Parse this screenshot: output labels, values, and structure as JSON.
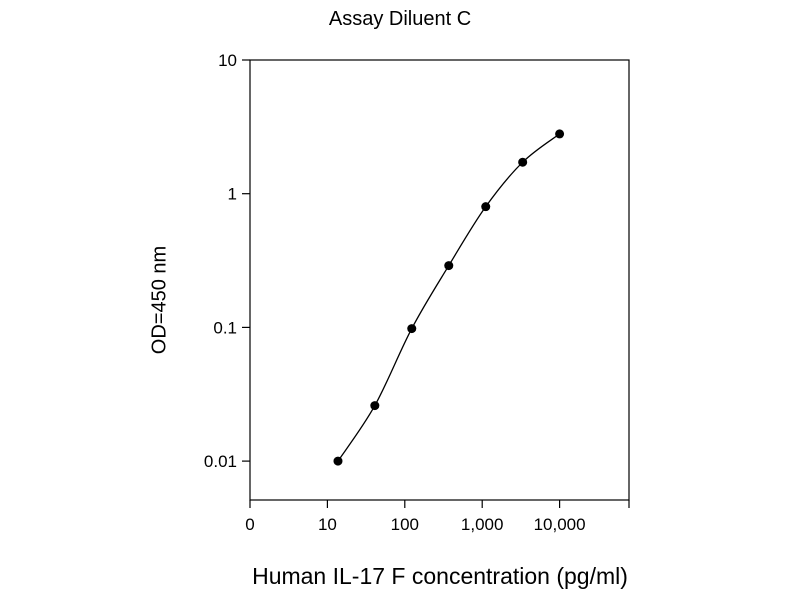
{
  "chart_data": {
    "type": "line",
    "title": "Assay Diluent C",
    "xlabel": "Human IL-17 F concentration (pg/ml)",
    "ylabel": "OD=450 nm",
    "x_scale": "log",
    "y_scale": "log",
    "xlim": [
      1,
      100000
    ],
    "ylim": [
      0.003,
      10
    ],
    "x_ticks": [
      {
        "value": 1,
        "label": "0"
      },
      {
        "value": 10,
        "label": "10"
      },
      {
        "value": 100,
        "label": "100"
      },
      {
        "value": 1000,
        "label": "1,000"
      },
      {
        "value": 10000,
        "label": "10,000"
      }
    ],
    "y_ticks": [
      {
        "value": 0.01,
        "label": "0.01"
      },
      {
        "value": 0.1,
        "label": "0.1"
      },
      {
        "value": 1,
        "label": "1"
      },
      {
        "value": 10,
        "label": "10"
      }
    ],
    "grid": false,
    "series": [
      {
        "x": [
          13.7,
          41,
          123,
          370,
          1111,
          3333,
          10000
        ],
        "y": [
          0.01,
          0.026,
          0.098,
          0.29,
          0.8,
          1.72,
          2.8
        ]
      }
    ]
  }
}
